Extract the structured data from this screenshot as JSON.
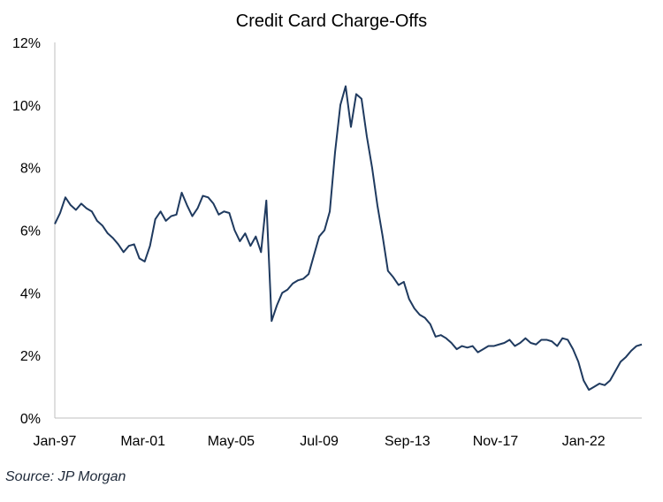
{
  "chart_data": {
    "type": "line",
    "title": "Credit Card Charge-Offs",
    "xlabel": "",
    "ylabel": "",
    "x_tick_labels": [
      "Jan-97",
      "Mar-01",
      "May-05",
      "Jul-09",
      "Sep-13",
      "Nov-17",
      "Jan-22"
    ],
    "x_tick_positions": [
      1997.0,
      2001.1667,
      2005.3333,
      2009.5,
      2013.6667,
      2017.8333,
      2022.0
    ],
    "y_tick_labels": [
      "0%",
      "2%",
      "4%",
      "6%",
      "8%",
      "10%",
      "12%"
    ],
    "y_ticks": [
      0,
      2,
      4,
      6,
      8,
      10,
      12
    ],
    "xlim": [
      1997.0,
      2024.75
    ],
    "ylim": [
      0,
      12
    ],
    "grid": false,
    "line_color": "#1f3a5f",
    "series": [
      {
        "x": [
          1997.0,
          1997.25,
          1997.5,
          1997.75,
          1998.0,
          1998.25,
          1998.5,
          1998.75,
          1999.0,
          1999.25,
          1999.5,
          1999.75,
          2000.0,
          2000.25,
          2000.5,
          2000.75,
          2001.0,
          2001.25,
          2001.5,
          2001.75,
          2002.0,
          2002.25,
          2002.5,
          2002.75,
          2003.0,
          2003.25,
          2003.5,
          2003.75,
          2004.0,
          2004.25,
          2004.5,
          2004.75,
          2005.0,
          2005.25,
          2005.5,
          2005.75,
          2006.0,
          2006.25,
          2006.5,
          2006.75,
          2007.0,
          2007.25,
          2007.5,
          2007.75,
          2008.0,
          2008.25,
          2008.5,
          2008.75,
          2009.0,
          2009.25,
          2009.5,
          2009.75,
          2010.0,
          2010.25,
          2010.5,
          2010.75,
          2011.0,
          2011.25,
          2011.5,
          2011.75,
          2012.0,
          2012.25,
          2012.5,
          2012.75,
          2013.0,
          2013.25,
          2013.5,
          2013.75,
          2014.0,
          2014.25,
          2014.5,
          2014.75,
          2015.0,
          2015.25,
          2015.5,
          2015.75,
          2016.0,
          2016.25,
          2016.5,
          2016.75,
          2017.0,
          2017.25,
          2017.5,
          2017.75,
          2018.0,
          2018.25,
          2018.5,
          2018.75,
          2019.0,
          2019.25,
          2019.5,
          2019.75,
          2020.0,
          2020.25,
          2020.5,
          2020.75,
          2021.0,
          2021.25,
          2021.5,
          2021.75,
          2022.0,
          2022.25,
          2022.5,
          2022.75,
          2023.0,
          2023.25,
          2023.5,
          2023.75,
          2024.0,
          2024.25,
          2024.5,
          2024.75
        ],
        "values": [
          6.2,
          6.55,
          7.05,
          6.8,
          6.65,
          6.85,
          6.7,
          6.6,
          6.3,
          6.15,
          5.9,
          5.75,
          5.55,
          5.3,
          5.5,
          5.55,
          5.1,
          5.0,
          5.5,
          6.35,
          6.6,
          6.3,
          6.45,
          6.5,
          7.2,
          6.8,
          6.45,
          6.7,
          7.1,
          7.05,
          6.85,
          6.5,
          6.6,
          6.55,
          6.0,
          5.65,
          5.9,
          5.5,
          5.8,
          5.3,
          6.95,
          3.1,
          3.6,
          4.0,
          4.1,
          4.3,
          4.4,
          4.45,
          4.6,
          5.2,
          5.8,
          6.0,
          6.6,
          8.5,
          10.0,
          10.6,
          9.3,
          10.35,
          10.2,
          9.0,
          8.0,
          6.8,
          5.8,
          4.7,
          4.5,
          4.25,
          4.35,
          3.8,
          3.5,
          3.3,
          3.2,
          3.0,
          2.6,
          2.65,
          2.55,
          2.4,
          2.2,
          2.3,
          2.25,
          2.3,
          2.1,
          2.2,
          2.3,
          2.3,
          2.35,
          2.4,
          2.5,
          2.3,
          2.4,
          2.55,
          2.4,
          2.35,
          2.5,
          2.5,
          2.45,
          2.3,
          2.55,
          2.5,
          2.2,
          1.8,
          1.2,
          0.9,
          1.0,
          1.1,
          1.05,
          1.2,
          1.5,
          1.8,
          1.95,
          2.15,
          2.3,
          2.35
        ]
      }
    ]
  },
  "source_note": "Source: JP Morgan"
}
